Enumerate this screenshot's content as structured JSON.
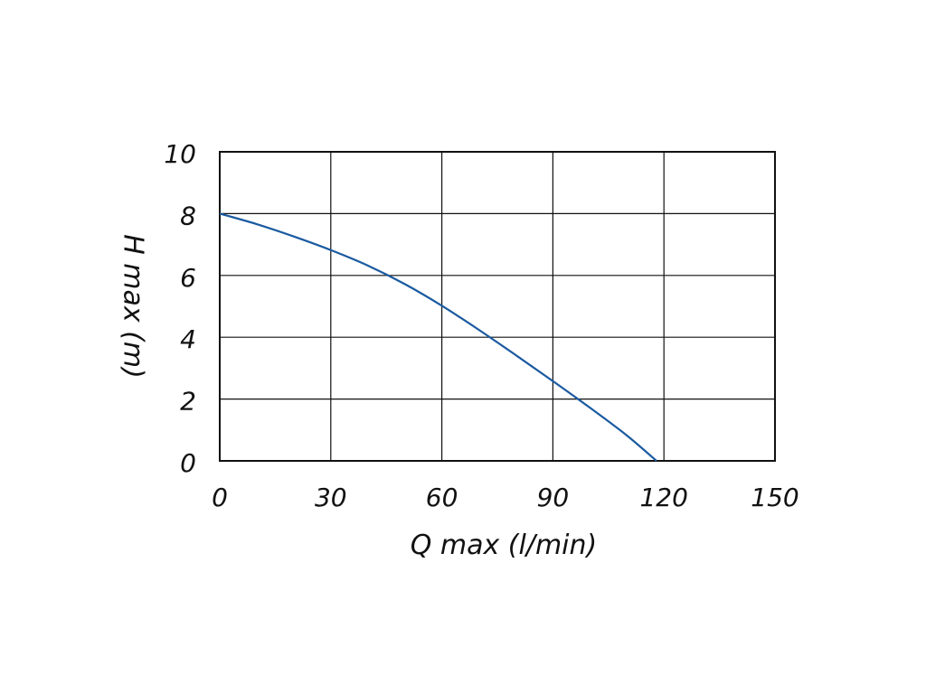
{
  "chart_data": {
    "type": "line",
    "xlabel": "Q max (l/min)",
    "ylabel": "H max (m)",
    "xlim": [
      0,
      150
    ],
    "ylim": [
      0,
      10
    ],
    "x_ticks": [
      "0",
      "30",
      "60",
      "90",
      "120",
      "150"
    ],
    "y_ticks": [
      "0",
      "2",
      "4",
      "6",
      "8",
      "10"
    ],
    "grid": true,
    "series": [
      {
        "color": "#1a5aa0",
        "x": [
          0,
          10,
          20,
          30,
          40,
          50,
          60,
          70,
          80,
          90,
          100,
          110,
          118
        ],
        "y": [
          8.0,
          7.66,
          7.26,
          6.82,
          6.32,
          5.72,
          5.02,
          4.24,
          3.42,
          2.58,
          1.72,
          0.82,
          0.0
        ]
      }
    ]
  }
}
